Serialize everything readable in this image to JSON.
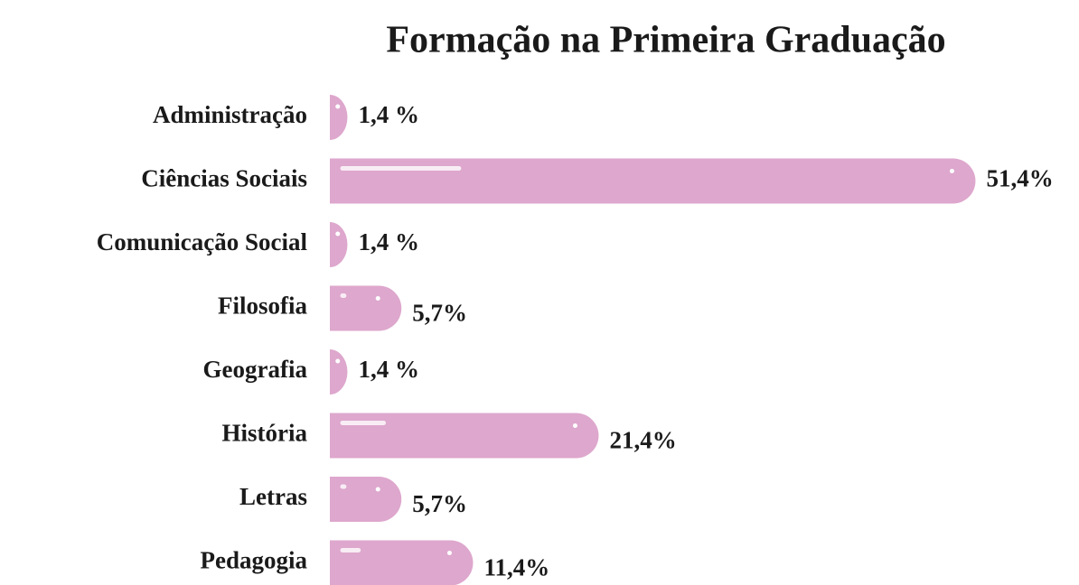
{
  "chart_data": {
    "type": "bar",
    "orientation": "horizontal",
    "title": "Formação na Primeira Graduação",
    "categories": [
      "Administração",
      "Ciências Sociais",
      "Comunicação Social",
      "Filosofia",
      "Geografia",
      "História",
      "Letras",
      "Pedagogia"
    ],
    "values": [
      1.4,
      51.4,
      1.4,
      5.7,
      1.4,
      21.4,
      5.7,
      11.4
    ],
    "value_labels": [
      "1,4 %",
      "51,4%",
      "1,4 %",
      "5,7%",
      "1,4 %",
      "21,4%",
      "5,7%",
      "11,4%"
    ],
    "color": "#dea7cd"
  }
}
